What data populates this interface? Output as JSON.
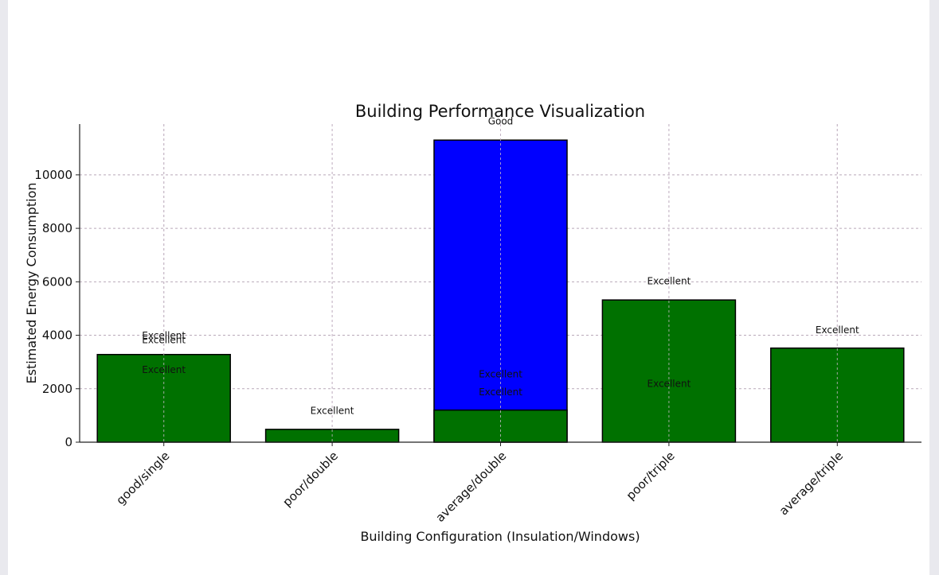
{
  "chart_data": {
    "type": "bar",
    "title": "Building Performance Visualization",
    "xlabel": "Building Configuration (Insulation/Windows)",
    "ylabel": "Estimated Energy Consumption",
    "categories": [
      "good/single",
      "poor/double",
      "average/double",
      "poor/triple",
      "average/triple"
    ],
    "ylim": [
      0,
      11900
    ],
    "yticks": [
      0,
      2000,
      4000,
      6000,
      8000,
      10000
    ],
    "grid": true,
    "bars": [
      {
        "category": "average/double",
        "value": 11300,
        "color": "#0000ff"
      },
      {
        "category": "good/single",
        "value": 3280,
        "color": "#007100"
      },
      {
        "category": "poor/double",
        "value": 480,
        "color": "#007100"
      },
      {
        "category": "average/double",
        "value": 1200,
        "color": "#007100"
      },
      {
        "category": "poor/triple",
        "value": 5320,
        "color": "#007100"
      },
      {
        "category": "average/triple",
        "value": 3520,
        "color": "#007100"
      }
    ],
    "annotations": [
      {
        "category": "good/single",
        "y": 3980,
        "text": "Excellent"
      },
      {
        "category": "good/single",
        "y": 3830,
        "text": "Excellent"
      },
      {
        "category": "good/single",
        "y": 2710,
        "text": "Excellent"
      },
      {
        "category": "poor/double",
        "y": 1180,
        "text": "Excellent"
      },
      {
        "category": "average/double",
        "y": 12000,
        "text": "Good"
      },
      {
        "category": "average/double",
        "y": 2540,
        "text": "Excellent"
      },
      {
        "category": "average/double",
        "y": 1870,
        "text": "Excellent"
      },
      {
        "category": "poor/triple",
        "y": 6020,
        "text": "Excellent"
      },
      {
        "category": "poor/triple",
        "y": 2180,
        "text": "Excellent"
      },
      {
        "category": "average/triple",
        "y": 4200,
        "text": "Excellent"
      }
    ]
  }
}
